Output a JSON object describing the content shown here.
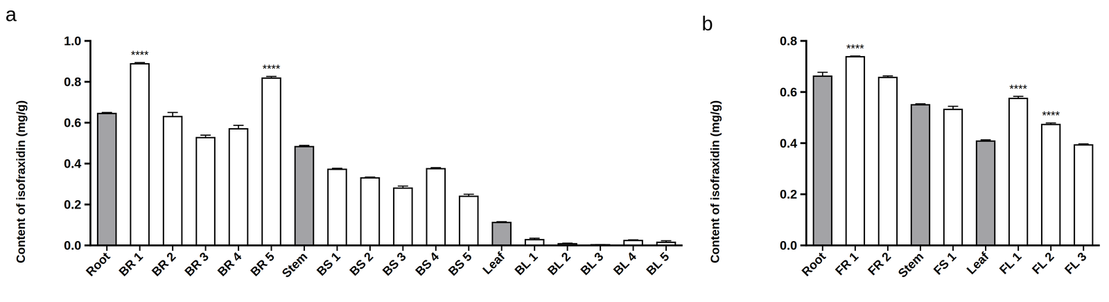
{
  "chart_data": [
    {
      "type": "bar",
      "panel_label": "a",
      "y_label": "Content of isofraxidin (mg/g)",
      "categories": [
        "Root",
        "BR 1",
        "BR 2",
        "BR 3",
        "BR 4",
        "BR 5",
        "Stem",
        "BS 1",
        "BS 2",
        "BS 3",
        "BS 4",
        "BS 5",
        "Leaf",
        "BL 1",
        "BL 2",
        "BL 3",
        "BL 4",
        "BL 5"
      ],
      "values": [
        0.645,
        0.888,
        0.63,
        0.527,
        0.57,
        0.818,
        0.483,
        0.372,
        0.33,
        0.28,
        0.375,
        0.24,
        0.112,
        0.028,
        0.008,
        0.003,
        0.024,
        0.015
      ],
      "errors": [
        0.005,
        0.006,
        0.02,
        0.012,
        0.017,
        0.008,
        0.006,
        0.005,
        0.004,
        0.01,
        0.005,
        0.01,
        0.004,
        0.007,
        0.003,
        0.001,
        0.003,
        0.008
      ],
      "colors": [
        "#a3a3a6",
        "#ffffff",
        "#ffffff",
        "#ffffff",
        "#ffffff",
        "#ffffff",
        "#a3a3a6",
        "#ffffff",
        "#ffffff",
        "#ffffff",
        "#ffffff",
        "#ffffff",
        "#a3a3a6",
        "#ffffff",
        "#ffffff",
        "#ffffff",
        "#ffffff",
        "#ffffff"
      ],
      "annotations": [
        {
          "text": "****",
          "category": "BR 1"
        },
        {
          "text": "****",
          "category": "BR 5"
        }
      ],
      "ylim": [
        0,
        1.0
      ],
      "yticks": [
        {
          "value": 0,
          "label": "0.0"
        },
        0.2,
        0.4,
        0.6,
        0.8,
        {
          "value": 1.0,
          "label": "1.0"
        }
      ],
      "grid": false
    },
    {
      "type": "bar",
      "panel_label": "b",
      "y_label": "Content of isofraxidin (mg/g)",
      "categories": [
        "Root",
        "FR 1",
        "FR 2",
        "Stem",
        "FS 1",
        "Leaf",
        "FL 1",
        "FL 2",
        "FL 3"
      ],
      "values": [
        0.662,
        0.738,
        0.657,
        0.55,
        0.532,
        0.408,
        0.575,
        0.473,
        0.393
      ],
      "errors": [
        0.015,
        0.003,
        0.006,
        0.004,
        0.012,
        0.005,
        0.008,
        0.006,
        0.004
      ],
      "colors": [
        "#a3a3a6",
        "#ffffff",
        "#ffffff",
        "#a3a3a6",
        "#ffffff",
        "#a3a3a6",
        "#ffffff",
        "#ffffff",
        "#ffffff"
      ],
      "annotations": [
        {
          "text": "****",
          "category": "FR 1"
        },
        {
          "text": "****",
          "category": "FL 1"
        },
        {
          "text": "****",
          "category": "FL 2"
        }
      ],
      "ylim": [
        0,
        0.8
      ],
      "yticks": [
        {
          "value": 0,
          "label": "0.0"
        },
        0.2,
        0.4,
        0.6,
        {
          "value": 0.8,
          "label": "0.8"
        }
      ],
      "grid": false
    }
  ]
}
